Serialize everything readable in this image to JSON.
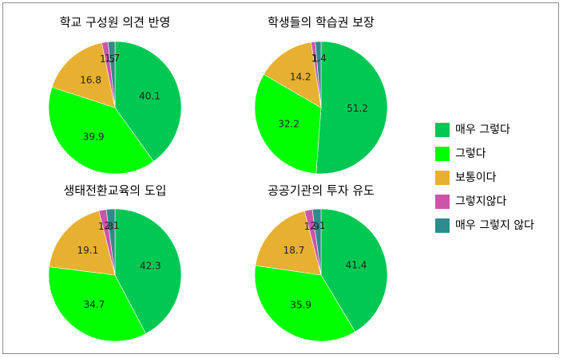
{
  "chart_data": {
    "type": "pie",
    "legend_position": "right",
    "legend": [
      {
        "label": "매우 그렇다",
        "color": "#00c853"
      },
      {
        "label": "그렇다",
        "color": "#00ff00"
      },
      {
        "label": "보통이다",
        "color": "#e8b030"
      },
      {
        "label": "그렇지않다",
        "color": "#cc55aa"
      },
      {
        "label": "매우 그렇지 않다",
        "color": "#2e8b8b"
      }
    ],
    "charts": [
      {
        "title": "학교 구성원 의견 반영",
        "values": [
          40.1,
          39.9,
          16.8,
          1.5,
          1.7
        ],
        "labels": [
          "40.1",
          "39.9",
          "16.8",
          "1.5",
          "1.7"
        ]
      },
      {
        "title": "학생들의 학습권 보장",
        "values": [
          51.2,
          32.2,
          14.2,
          1.0,
          1.4
        ],
        "labels": [
          "51.2",
          "32.2",
          "14.2",
          "1",
          "1.4"
        ]
      },
      {
        "title": "생태전환교육의 도입",
        "values": [
          42.3,
          34.7,
          19.1,
          1.8,
          2.1
        ],
        "labels": [
          "42.3",
          "34.7",
          "19.1",
          "1.8",
          "2.1"
        ]
      },
      {
        "title": "공공기관의 투자 유도",
        "values": [
          41.4,
          35.9,
          18.7,
          1.9,
          2.1
        ],
        "labels": [
          "41.4",
          "35.9",
          "18.7",
          "1.9",
          "2.1"
        ]
      }
    ]
  }
}
